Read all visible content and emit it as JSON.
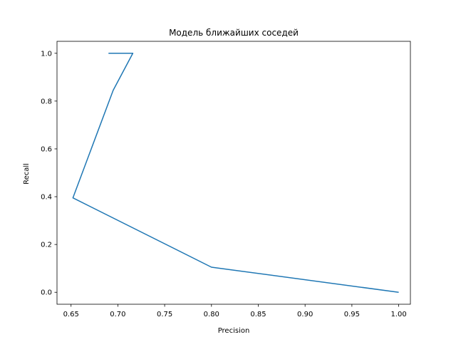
{
  "chart_data": {
    "type": "line",
    "title": "Модель ближайших соседей",
    "xlabel": "Precision",
    "ylabel": "Recall",
    "xlim": [
      0.635,
      1.0125
    ],
    "ylim": [
      -0.05,
      1.05
    ],
    "xticks": [
      0.65,
      0.7,
      0.75,
      0.8,
      0.85,
      0.9,
      0.95,
      1.0
    ],
    "xtick_labels": [
      "0.65",
      "0.70",
      "0.75",
      "0.80",
      "0.85",
      "0.90",
      "0.95",
      "1.00"
    ],
    "yticks": [
      0.0,
      0.2,
      0.4,
      0.6,
      0.8,
      1.0
    ],
    "ytick_labels": [
      "0.0",
      "0.2",
      "0.4",
      "0.6",
      "0.8",
      "1.0"
    ],
    "grid": false,
    "series": [
      {
        "color": "#1f77b4",
        "x": [
          0.69,
          0.716,
          0.695,
          0.652,
          0.8,
          1.0
        ],
        "y": [
          1.0,
          1.0,
          0.845,
          0.395,
          0.105,
          0.0
        ]
      }
    ]
  }
}
